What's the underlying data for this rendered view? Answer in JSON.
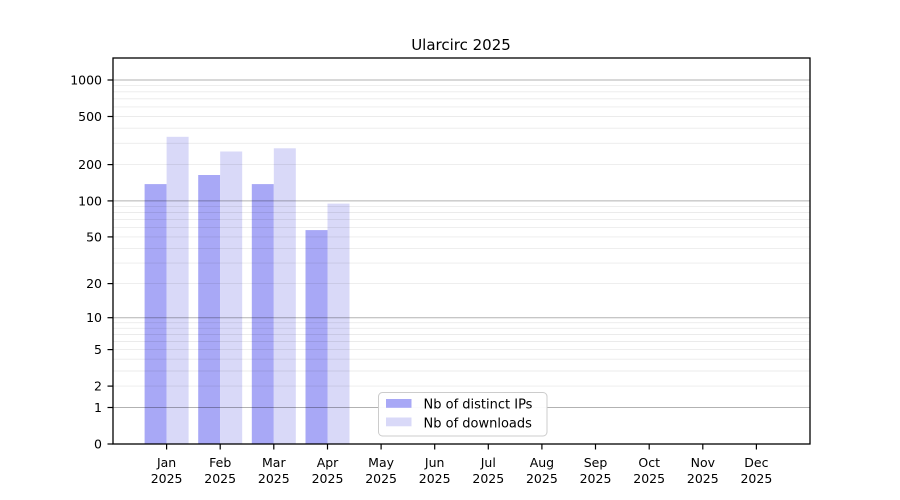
{
  "chart_data": {
    "type": "bar",
    "title": "Ularcirc 2025",
    "categories": [
      "Jan",
      "Feb",
      "Mar",
      "Apr",
      "May",
      "Jun",
      "Jul",
      "Aug",
      "Sep",
      "Oct",
      "Nov",
      "Dec"
    ],
    "category_year": "2025",
    "series": [
      {
        "name": "Nb of distinct IPs",
        "color": "#a8a8f6",
        "values": [
          138,
          164,
          138,
          57,
          null,
          null,
          null,
          null,
          null,
          null,
          null,
          null
        ]
      },
      {
        "name": "Nb of downloads",
        "color": "#d9d9f8",
        "values": [
          340,
          257,
          273,
          95,
          null,
          null,
          null,
          null,
          null,
          null,
          null,
          null
        ]
      }
    ],
    "xlabel": "",
    "ylabel": "",
    "yscale": "log1p",
    "yticks": [
      0,
      1,
      2,
      5,
      10,
      20,
      50,
      100,
      200,
      500,
      1000
    ],
    "ylim": [
      0,
      1500
    ],
    "grid": {
      "visible": true,
      "drawn_over_bars": true,
      "major_lines_at": [
        1,
        10,
        100,
        1000
      ],
      "minor_lines": "2-9 per decade",
      "major_color": "#b3b3b3",
      "minor_color": "#ececec"
    },
    "legend": {
      "location": "inside lower-center",
      "entries": [
        "Nb of distinct IPs",
        "Nb of downloads"
      ]
    },
    "axis_color": "#000000",
    "background_color": "#ffffff"
  }
}
